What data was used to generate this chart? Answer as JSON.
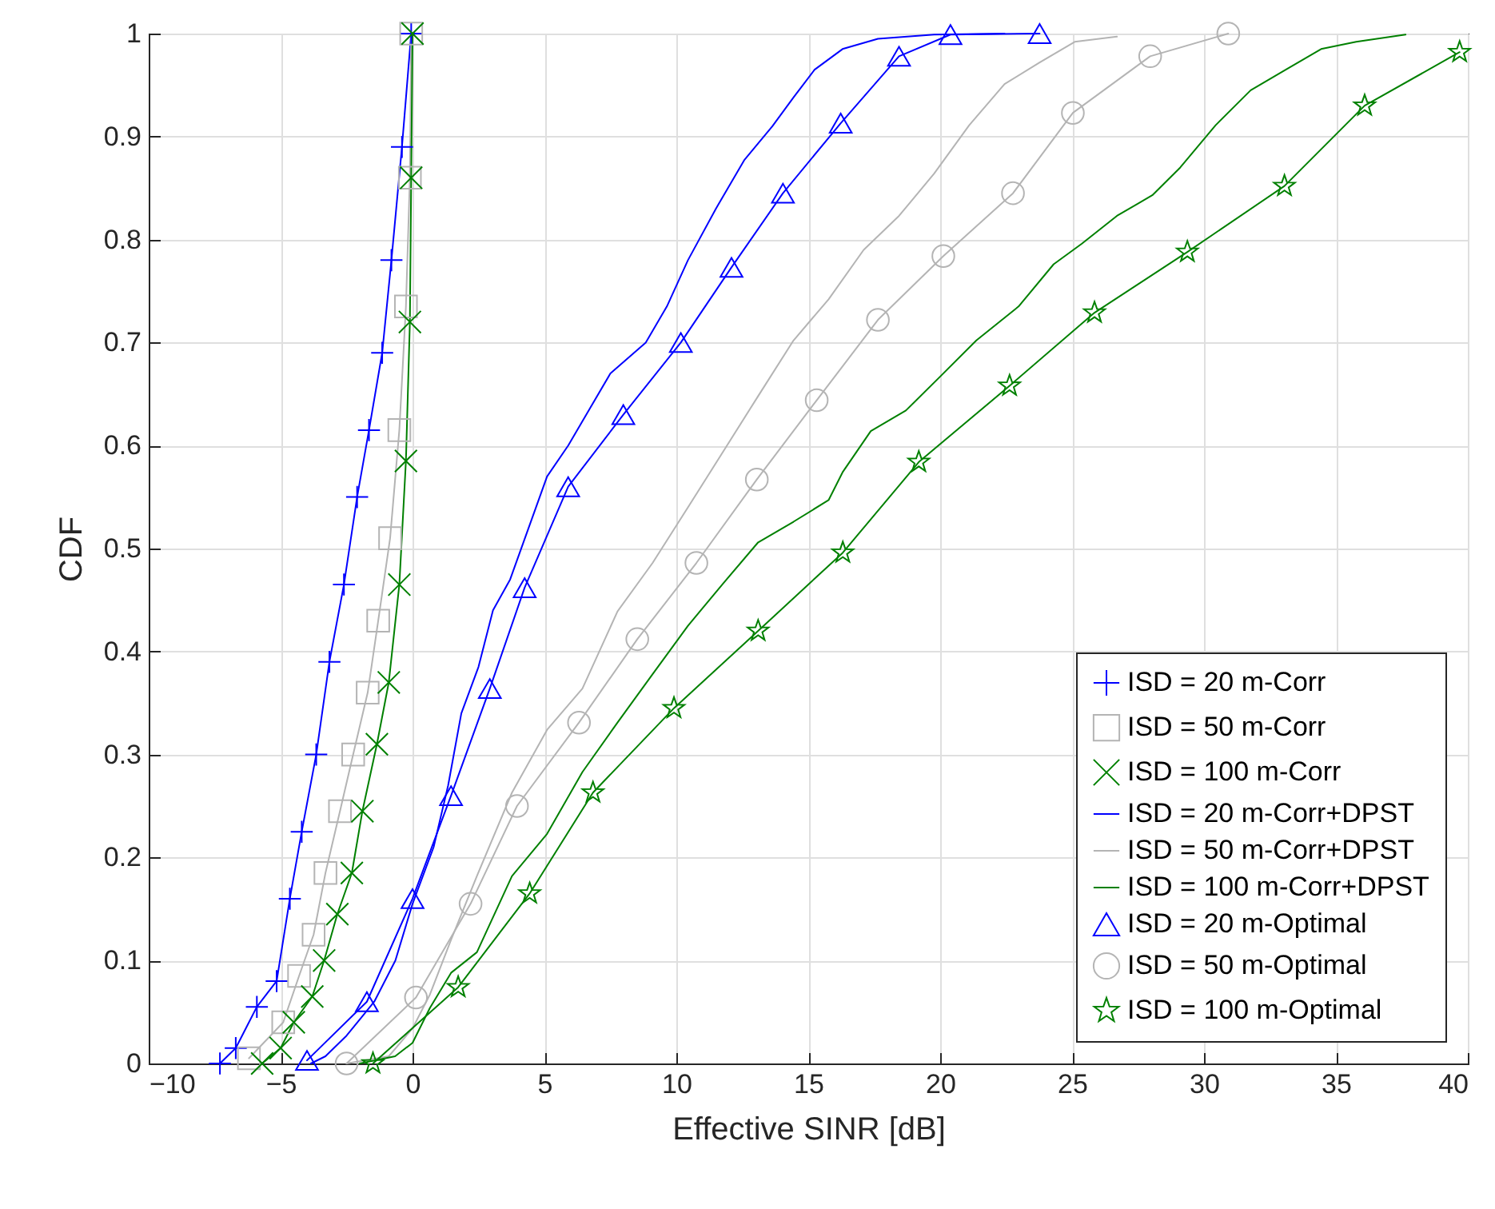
{
  "chart_data": {
    "type": "line",
    "xlabel": "Effective SINR [dB]",
    "ylabel": "CDF",
    "xlim": [
      -10,
      40
    ],
    "xticks": [
      -10,
      -5,
      0,
      5,
      10,
      15,
      20,
      25,
      30,
      35,
      40
    ],
    "ylim": [
      0,
      1
    ],
    "yticks": [
      0,
      0.1,
      0.2,
      0.3,
      0.4,
      0.5,
      0.6,
      0.7,
      0.8,
      0.9,
      1
    ],
    "grid": true,
    "legend": "bottom right",
    "series": [
      {
        "name": "ISD = 20 m-Corr",
        "color": "#0000ff",
        "marker": "cross",
        "x": [
          -7.3,
          -6.7,
          -5.9,
          -5.15,
          -4.65,
          -4.2,
          -3.65,
          -3.15,
          -2.6,
          -2.1,
          -1.65,
          -1.15,
          -0.8,
          -0.4,
          -0.05
        ],
        "values": [
          0,
          0.015,
          0.055,
          0.08,
          0.16,
          0.225,
          0.3,
          0.39,
          0.465,
          0.55,
          0.615,
          0.69,
          0.78,
          0.89,
          1
        ]
      },
      {
        "name": "ISD = 50 m-Corr",
        "color": "#b4b4b4",
        "marker": "square",
        "x": [
          -6.2,
          -4.9,
          -4.3,
          -3.75,
          -3.3,
          -2.75,
          -2.25,
          -1.7,
          -1.3,
          -0.85,
          -0.5,
          -0.25,
          -0.1,
          -0.05
        ],
        "values": [
          0.005,
          0.04,
          0.085,
          0.125,
          0.185,
          0.245,
          0.3,
          0.36,
          0.43,
          0.51,
          0.615,
          0.735,
          0.86,
          1
        ]
      },
      {
        "name": "ISD = 100 m-Corr",
        "color": "#008000",
        "marker": "x",
        "x": [
          -5.7,
          -5,
          -4.5,
          -3.8,
          -3.35,
          -2.85,
          -2.3,
          -1.9,
          -1.35,
          -0.9,
          -0.5,
          -0.25,
          -0.1,
          -0.05,
          0
        ],
        "values": [
          0,
          0.015,
          0.04,
          0.065,
          0.1,
          0.145,
          0.185,
          0.245,
          0.31,
          0.37,
          0.465,
          0.585,
          0.72,
          0.86,
          1
        ]
      },
      {
        "name": "ISD = 20 m-Corr+DPST",
        "color": "#0000ff",
        "marker": "none",
        "x": [
          -3.85,
          -3.3,
          -2.5,
          -1.45,
          -0.65,
          0,
          0.8,
          1.35,
          1.85,
          2.5,
          3.05,
          3.7,
          5.1,
          5.9,
          7.5,
          8.84,
          9.64,
          10.44,
          11.5,
          12.57,
          13.64,
          14.44,
          15.24,
          16.3,
          17.64,
          19.77,
          22.44
        ],
        "values": [
          0,
          0.007,
          0.027,
          0.06,
          0.1,
          0.155,
          0.21,
          0.27,
          0.34,
          0.385,
          0.44,
          0.47,
          0.57,
          0.6,
          0.67,
          0.7,
          0.735,
          0.78,
          0.83,
          0.877,
          0.91,
          0.938,
          0.965,
          0.985,
          0.995,
          0.999,
          1
        ]
      },
      {
        "name": "ISD = 50 m-Corr+DPST",
        "color": "#b4b4b4",
        "marker": "none",
        "x": [
          -2.5,
          -0.9,
          0,
          0.66,
          1.46,
          2.44,
          3.77,
          5.1,
          6.44,
          7.77,
          9.1,
          10.44,
          11.77,
          13.1,
          14.44,
          15.77,
          17.1,
          18.44,
          19.77,
          21.1,
          22.44,
          23.77,
          25.1,
          26.7
        ],
        "values": [
          0,
          0.007,
          0.034,
          0.067,
          0.12,
          0.182,
          0.263,
          0.324,
          0.364,
          0.439,
          0.486,
          0.54,
          0.594,
          0.648,
          0.702,
          0.742,
          0.79,
          0.823,
          0.864,
          0.911,
          0.951,
          0.972,
          0.992,
          0.997
        ]
      },
      {
        "name": "ISD = 100 m-Corr+DPST",
        "color": "#008000",
        "marker": "none",
        "x": [
          -2,
          -0.66,
          0,
          0.66,
          1.46,
          2.44,
          3.77,
          5.1,
          6.44,
          7.77,
          9.1,
          10.44,
          11.77,
          13.1,
          14.44,
          15.77,
          16.3,
          17.37,
          18.7,
          20.04,
          21.37,
          22.97,
          24.3,
          25.37,
          26.7,
          28.04,
          29.1,
          30.44,
          31.77,
          33.1,
          34.44,
          35.77,
          37.64
        ],
        "values": [
          0,
          0.007,
          0.02,
          0.054,
          0.088,
          0.108,
          0.182,
          0.223,
          0.283,
          0.331,
          0.378,
          0.425,
          0.466,
          0.506,
          0.526,
          0.547,
          0.574,
          0.614,
          0.634,
          0.668,
          0.702,
          0.735,
          0.776,
          0.796,
          0.823,
          0.843,
          0.87,
          0.911,
          0.945,
          0.965,
          0.985,
          0.992,
          0.999
        ]
      },
      {
        "name": "ISD = 20 m-Optimal",
        "color": "#0000ff",
        "marker": "triangle",
        "x": [
          -4,
          -1.73,
          0,
          1.46,
          2.93,
          4.25,
          5.9,
          7.99,
          10.17,
          12.09,
          14.04,
          16.23,
          18.44,
          20.39,
          23.77
        ],
        "values": [
          0.003,
          0.06,
          0.16,
          0.26,
          0.364,
          0.462,
          0.56,
          0.63,
          0.7,
          0.773,
          0.845,
          0.913,
          0.978,
          0.999,
          1
        ]
      },
      {
        "name": "ISD = 50 m-Optimal",
        "color": "#b4b4b4",
        "marker": "circle",
        "x": [
          -2.5,
          0.13,
          2.2,
          3.96,
          6.31,
          8.52,
          10.76,
          13.05,
          15.32,
          17.64,
          20.12,
          22.76,
          25.03,
          27.96,
          30.92
        ],
        "values": [
          0,
          0.064,
          0.155,
          0.25,
          0.331,
          0.412,
          0.486,
          0.567,
          0.644,
          0.722,
          0.784,
          0.845,
          0.923,
          0.978,
          1
        ]
      },
      {
        "name": "ISD = 100 m-Optimal",
        "color": "#008000",
        "marker": "star",
        "x": [
          -1.5,
          1.73,
          4.44,
          6.84,
          9.91,
          13.1,
          16.31,
          19.19,
          22.63,
          25.85,
          29.37,
          33.05,
          36.09,
          39.69
        ],
        "values": [
          0,
          0.074,
          0.165,
          0.263,
          0.345,
          0.42,
          0.496,
          0.584,
          0.658,
          0.729,
          0.788,
          0.852,
          0.93,
          0.982
        ]
      }
    ]
  }
}
